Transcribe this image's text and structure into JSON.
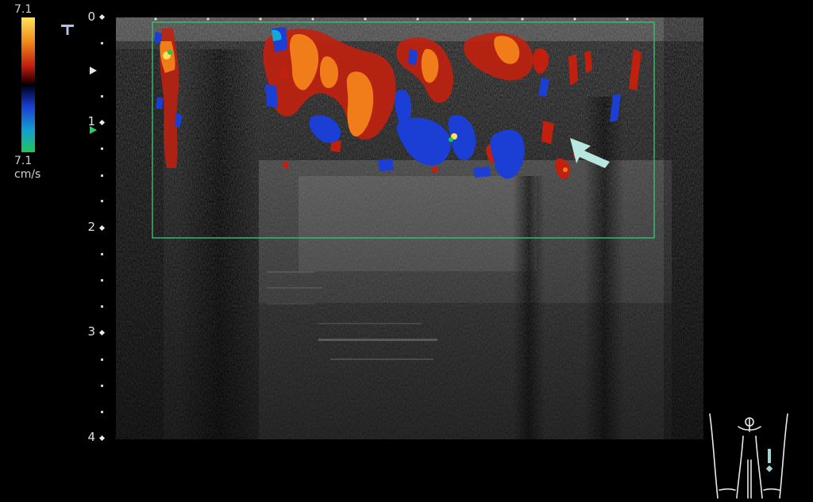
{
  "velocity_scale": {
    "top_value": "7.1",
    "bottom_value": "7.1",
    "unit": "cm/s",
    "colors": [
      "#ffe35a",
      "#f08a1c",
      "#c21d10",
      "#5a0000",
      "#000000",
      "#00106a",
      "#1a3ed0",
      "#14a8d8",
      "#22c45a"
    ]
  },
  "depth_scale": {
    "labels": [
      "0",
      "1",
      "2",
      "3",
      "4"
    ],
    "unit_implied": "cm"
  },
  "markers": {
    "transducer_mark": "T",
    "arrow_color": "#b8e6e0",
    "focus_color": "#25d06b"
  },
  "colors": {
    "doppler_red": "#c2200e",
    "doppler_orange": "#f07d1a",
    "doppler_blue": "#1b3ed4",
    "roi_box": "#39c06a"
  },
  "icons": {
    "arrow": "arrow-icon",
    "transducer_orientation": "transducer-orientation-icon",
    "body_marker": "body-marker-icon"
  }
}
